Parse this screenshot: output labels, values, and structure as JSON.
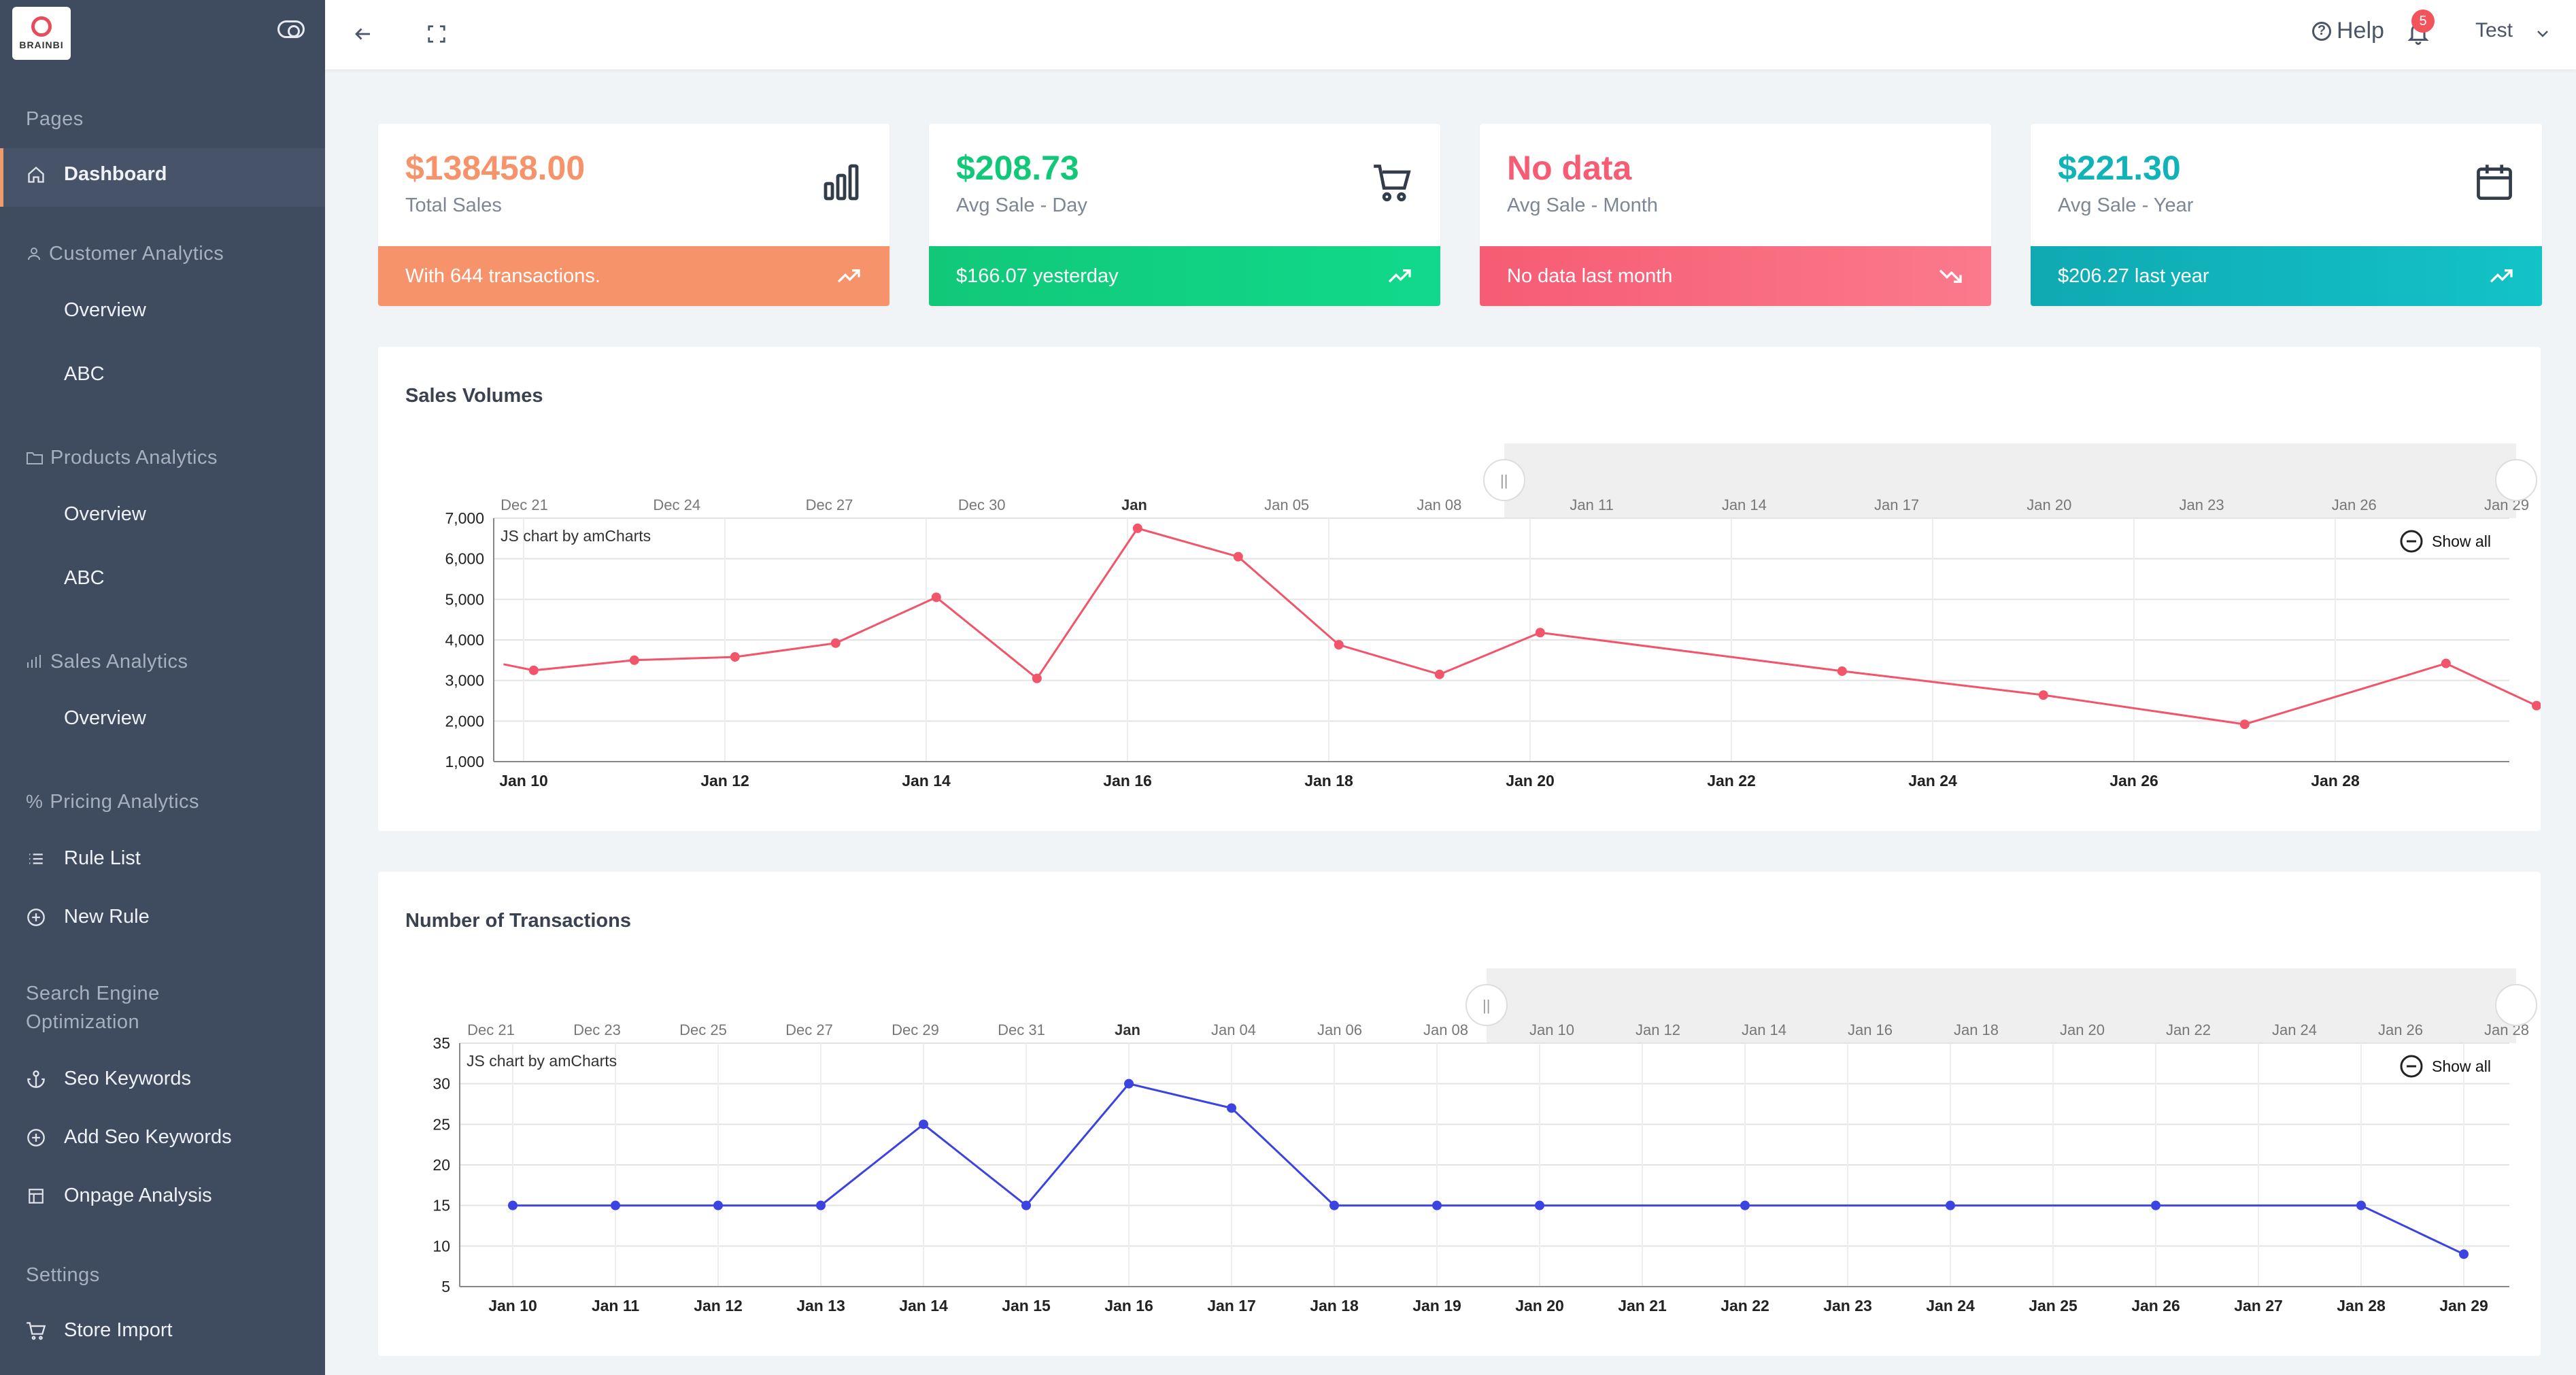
{
  "logo_text": "BRAINBI",
  "sidebar": {
    "sections": {
      "pages": "Pages",
      "customer": "Customer Analytics",
      "products": "Products Analytics",
      "sales": "Sales Analytics",
      "pricing": "Pricing Analytics",
      "seo_line1": "Search Engine",
      "seo_line2": "Optimization",
      "settings": "Settings"
    },
    "items": {
      "dashboard": "Dashboard",
      "customer_overview": "Overview",
      "customer_abc": "ABC",
      "products_overview": "Overview",
      "products_abc": "ABC",
      "sales_overview": "Overview",
      "rule_list": "Rule List",
      "new_rule": "New Rule",
      "seo_keywords": "Seo Keywords",
      "add_seo_keywords": "Add Seo Keywords",
      "onpage_analysis": "Onpage Analysis",
      "store_import": "Store Import"
    }
  },
  "header": {
    "help": "Help",
    "notifications": "5",
    "user": "Test"
  },
  "cards": [
    {
      "value": "$138458.00",
      "label": "Total Sales",
      "footer": "With 644 transactions.",
      "color": "#f7936a",
      "icon": "bar-chart-icon"
    },
    {
      "value": "$208.73",
      "label": "Avg Sale - Day",
      "footer": "$166.07 yesterday",
      "color": "#11c879",
      "icon": "cart-icon"
    },
    {
      "value": "No data",
      "label": "Avg Sale - Month",
      "footer": "No data last month",
      "color": "#f65c73",
      "icon": "none"
    },
    {
      "value": "$221.30",
      "label": "Avg Sale - Year",
      "footer": "$206.27 last year",
      "color": "#10b3b8",
      "icon": "calendar-icon"
    }
  ],
  "charts": {
    "sales": {
      "title": "Sales Volumes",
      "credit": "JS chart by amCharts",
      "show_all": "Show all"
    },
    "transactions": {
      "title": "Number of Transactions",
      "credit": "JS chart by amCharts",
      "show_all": "Show all"
    }
  },
  "chart_data": [
    {
      "type": "line",
      "title": "Sales Volumes",
      "color": "#f2546a",
      "x": [
        "Jan 9",
        "Jan 10",
        "Jan 11",
        "Jan 12",
        "Jan 13",
        "Jan 14",
        "Jan 15",
        "Jan 16",
        "Jan 17",
        "Jan 18",
        "Jan 19",
        "Jan 20",
        "Jan 23",
        "Jan 25",
        "Jan 27",
        "Jan 29",
        "Jan 30"
      ],
      "xpos": [
        9.8,
        10.1,
        11.1,
        12.1,
        13.1,
        14.1,
        15.1,
        16.1,
        17.1,
        18.1,
        19.1,
        20.1,
        23.1,
        25.1,
        27.1,
        29.1,
        30.0
      ],
      "values": [
        3400,
        3250,
        3500,
        3580,
        3920,
        5050,
        3050,
        6750,
        6050,
        3880,
        3150,
        4180,
        3230,
        2640,
        1920,
        3420,
        2380
      ],
      "x_ticks": [
        "Jan 10",
        "Jan 12",
        "Jan 14",
        "Jan 16",
        "Jan 18",
        "Jan 20",
        "Jan 22",
        "Jan 24",
        "Jan 26",
        "Jan 28"
      ],
      "y_ticks": [
        "7,000",
        "6,000",
        "5,000",
        "4,000",
        "3,000",
        "2,000",
        "1,000"
      ],
      "ylim": [
        1000,
        7000
      ],
      "scrollbar_ticks": [
        "Dec 21",
        "Dec 24",
        "Dec 27",
        "Dec 30",
        "Jan",
        "Jan 05",
        "Jan 08",
        "Jan 11",
        "Jan 14",
        "Jan 17",
        "Jan 20",
        "Jan 23",
        "Jan 26",
        "Jan 29"
      ],
      "grid": true
    },
    {
      "type": "line",
      "title": "Number of Transactions",
      "color": "#3b43e0",
      "x": [
        "Jan 10",
        "Jan 11",
        "Jan 12",
        "Jan 13",
        "Jan 14",
        "Jan 15",
        "Jan 16",
        "Jan 17",
        "Jan 18",
        "Jan 19",
        "Jan 20",
        "Jan 22",
        "Jan 24",
        "Jan 26",
        "Jan 28",
        "Jan 29"
      ],
      "xpos": [
        10,
        11,
        12,
        13,
        14,
        15,
        16,
        17,
        18,
        19,
        20,
        22,
        24,
        26,
        28,
        29
      ],
      "values": [
        15,
        15,
        15,
        15,
        25,
        15,
        30,
        27,
        15,
        15,
        15,
        15,
        15,
        15,
        15,
        9
      ],
      "x_ticks": [
        "Jan 10",
        "Jan 11",
        "Jan 12",
        "Jan 13",
        "Jan 14",
        "Jan 15",
        "Jan 16",
        "Jan 17",
        "Jan 18",
        "Jan 19",
        "Jan 20",
        "Jan 21",
        "Jan 22",
        "Jan 23",
        "Jan 24",
        "Jan 25",
        "Jan 26",
        "Jan 27",
        "Jan 28",
        "Jan 29"
      ],
      "y_ticks": [
        "35",
        "30",
        "25",
        "20",
        "15",
        "10",
        "5"
      ],
      "ylim": [
        5,
        35
      ],
      "scrollbar_ticks": [
        "Dec 21",
        "Dec 23",
        "Dec 25",
        "Dec 27",
        "Dec 29",
        "Dec 31",
        "Jan",
        "Jan 04",
        "Jan 06",
        "Jan 08",
        "Jan 10",
        "Jan 12",
        "Jan 14",
        "Jan 16",
        "Jan 18",
        "Jan 20",
        "Jan 22",
        "Jan 24",
        "Jan 26",
        "Jan 28"
      ],
      "grid": true
    }
  ]
}
